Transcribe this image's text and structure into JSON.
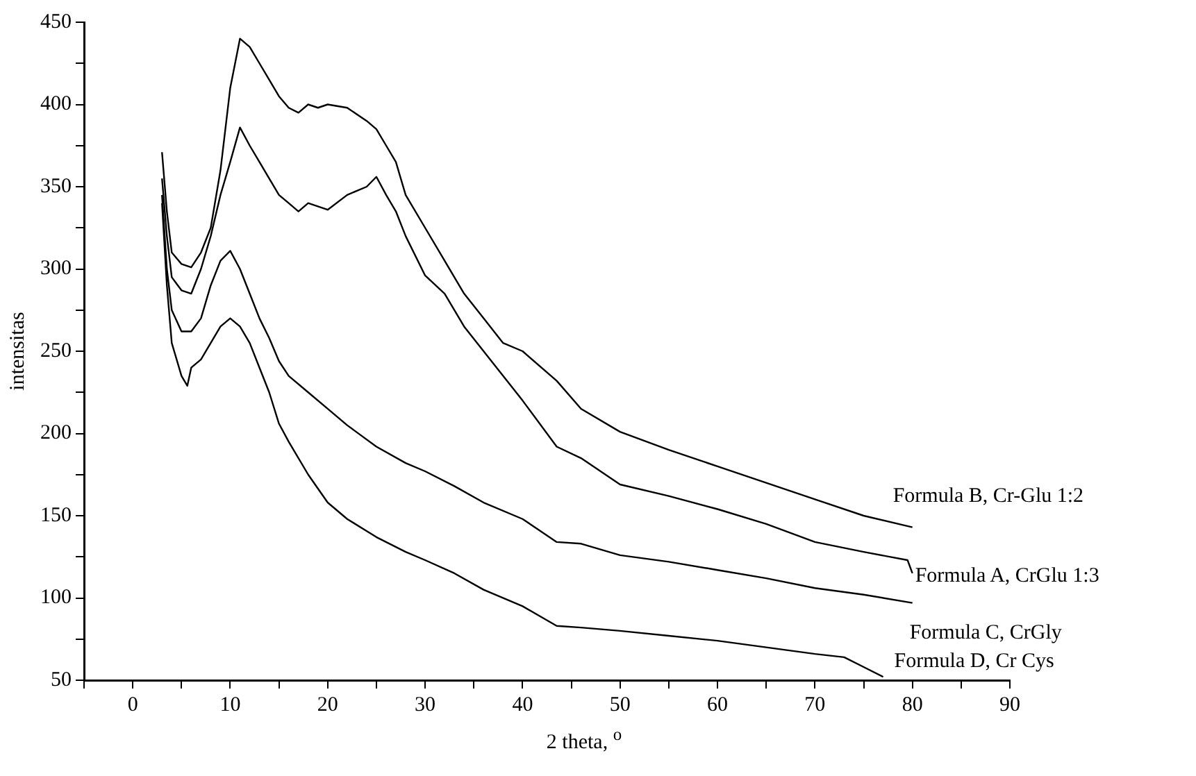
{
  "chart_data": {
    "type": "line",
    "xlabel": "2 theta, $^{o}$",
    "ylabel": "intensitas",
    "xlim": [
      -5,
      90
    ],
    "ylim": [
      50,
      450
    ],
    "xticks": [
      {
        "value": -5,
        "label": null
      },
      0,
      {
        "value": 5,
        "label": null
      },
      10,
      {
        "value": 15,
        "label": null
      },
      20,
      {
        "value": 25,
        "label": null
      },
      30,
      {
        "value": 35,
        "label": null
      },
      40,
      {
        "value": 45,
        "label": null
      },
      50,
      {
        "value": 55,
        "label": null
      },
      60,
      {
        "value": 65,
        "label": null
      },
      70,
      {
        "value": 75,
        "label": null
      },
      80,
      {
        "value": 85,
        "label": null
      },
      90
    ],
    "yticks": [
      50,
      {
        "value": 75,
        "label": null
      },
      100,
      {
        "value": 125,
        "label": null
      },
      150,
      {
        "value": 175,
        "label": null
      },
      200,
      {
        "value": 225,
        "label": null
      },
      250,
      {
        "value": 275,
        "label": null
      },
      300,
      {
        "value": 325,
        "label": null
      },
      350,
      {
        "value": 375,
        "label": null
      },
      400,
      {
        "value": 425,
        "label": null
      },
      450
    ],
    "grid": false,
    "legend": false,
    "marker": "none",
    "line_style": "solid",
    "series": [
      {
        "name": "Formula B, Cr-Glu 1:2",
        "color": "#000000",
        "x": [
          3,
          3.5,
          4,
          5,
          6,
          7,
          8,
          9,
          10,
          11,
          12,
          13,
          14,
          15,
          16,
          17,
          18,
          19,
          20,
          22,
          24,
          25,
          26,
          27,
          28,
          30,
          32,
          34,
          36,
          38,
          40,
          43.5,
          46,
          50,
          55,
          60,
          65,
          70,
          75,
          80
        ],
        "values": [
          371,
          335,
          310,
          303,
          301,
          310,
          325,
          360,
          410,
          440,
          435,
          425,
          415,
          405,
          398,
          395,
          400,
          398,
          400,
          398,
          390,
          385,
          375,
          365,
          345,
          325,
          305,
          285,
          270,
          255,
          250,
          232,
          215,
          201,
          190,
          180,
          170,
          160,
          150,
          143
        ]
      },
      {
        "name": "Formula A, CrGlu 1:3",
        "color": "#000000",
        "x": [
          3,
          3.5,
          4,
          5,
          6,
          7,
          8,
          9,
          10,
          11,
          12,
          13,
          14,
          15,
          16,
          17,
          18,
          20,
          22,
          24,
          25,
          26,
          27,
          28,
          30,
          32,
          34,
          36,
          38,
          40,
          43.5,
          46,
          50,
          55,
          60,
          65,
          70,
          75,
          79.5,
          80
        ],
        "values": [
          355,
          320,
          295,
          287,
          285,
          300,
          320,
          345,
          365,
          386,
          375,
          365,
          355,
          345,
          340,
          335,
          340,
          336,
          345,
          350,
          356,
          345,
          335,
          320,
          296,
          285,
          265,
          250,
          235,
          220,
          192,
          185,
          169,
          162,
          154,
          145,
          134,
          128,
          123,
          115
        ]
      },
      {
        "name": "Formula C, CrGly",
        "color": "#000000",
        "x": [
          3,
          3.5,
          4,
          5,
          6,
          7,
          8,
          9,
          10,
          11,
          12,
          13,
          14,
          15,
          16,
          18,
          20,
          22,
          25,
          28,
          30,
          33,
          36,
          40,
          43.5,
          46,
          50,
          55,
          60,
          65,
          70,
          75,
          80
        ],
        "values": [
          345,
          300,
          275,
          262,
          262,
          270,
          290,
          305,
          311,
          300,
          285,
          270,
          258,
          244,
          235,
          225,
          215,
          205,
          192,
          182,
          177,
          168,
          158,
          148,
          134,
          133,
          126,
          122,
          117,
          112,
          106,
          102,
          97
        ]
      },
      {
        "name": "Formula D, Cr Cys",
        "color": "#000000",
        "x": [
          3,
          3.5,
          4,
          5,
          5.6,
          6,
          7,
          8,
          9,
          10,
          11,
          12,
          13,
          14,
          15,
          16,
          18,
          20,
          22,
          25,
          28,
          30,
          33,
          36,
          40,
          43.5,
          46,
          50,
          55,
          60,
          65,
          70,
          73,
          75,
          77
        ],
        "values": [
          340,
          290,
          255,
          235,
          229,
          240,
          245,
          255,
          265,
          270,
          265,
          255,
          240,
          225,
          206,
          195,
          175,
          158,
          148,
          137,
          128,
          123,
          115,
          105,
          95,
          83,
          82,
          80,
          77,
          74,
          70,
          66,
          64,
          58,
          52
        ]
      }
    ]
  }
}
